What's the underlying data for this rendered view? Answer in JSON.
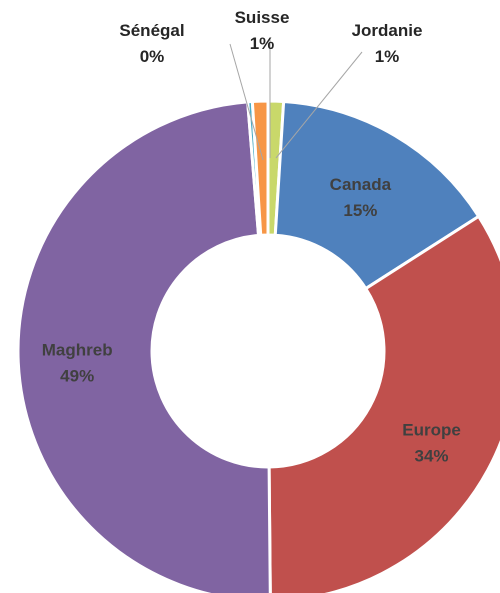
{
  "chart_data": {
    "type": "pie",
    "variant": "donut",
    "title": "",
    "slices": [
      {
        "label": "Jordanie",
        "value": 1,
        "value_label": "1%",
        "color": "#c9d86a"
      },
      {
        "label": "Canada",
        "value": 15,
        "value_label": "15%",
        "color": "#4f81bd"
      },
      {
        "label": "Europe",
        "value": 34,
        "value_label": "34%",
        "color": "#c0504d"
      },
      {
        "label": "Maghreb",
        "value": 49,
        "value_label": "49%",
        "color": "#8064a2"
      },
      {
        "label": "Sénégal",
        "value": 0.3,
        "value_label": "0%",
        "color": "#4bacc6"
      },
      {
        "label": "Suisse",
        "value": 1,
        "value_label": "1%",
        "color": "#f79646"
      }
    ],
    "legend": "none",
    "separator_color": "#ffffff"
  }
}
